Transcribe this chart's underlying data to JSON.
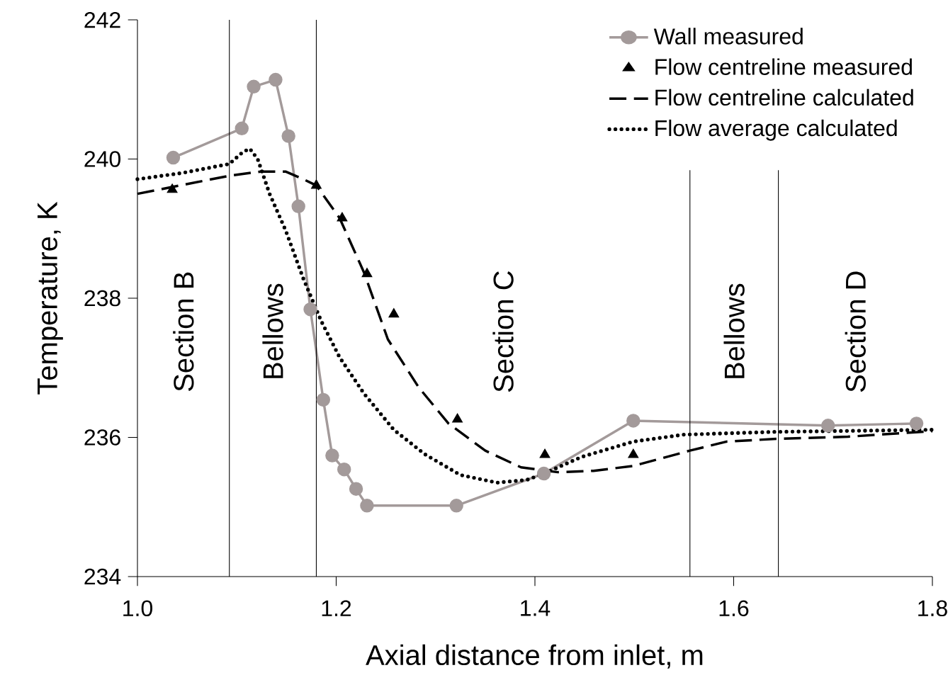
{
  "chart_data": {
    "type": "line",
    "xlabel": "Axial distance from inlet, m",
    "ylabel": "Temperature, K",
    "xlim": [
      1.0,
      1.8
    ],
    "ylim": [
      234,
      242
    ],
    "xticks": [
      {
        "value": 1.0,
        "label": "1.0"
      },
      {
        "value": 1.2,
        "label": "1.2"
      },
      {
        "value": 1.4,
        "label": "1.4"
      },
      {
        "value": 1.6,
        "label": "1.6"
      },
      {
        "value": 1.8,
        "label": "1.8"
      }
    ],
    "yticks": [
      234,
      236,
      238,
      240,
      242
    ],
    "grid": false,
    "legend": "top right",
    "series": [
      {
        "name": "Wall measured",
        "color": "#a39a9a",
        "marker": "circle",
        "line_style": "solid",
        "x": [
          1.036,
          1.105,
          1.117,
          1.139,
          1.152,
          1.162,
          1.174,
          1.187,
          1.196,
          1.208,
          1.22,
          1.231,
          1.321,
          1.409,
          1.499,
          1.695,
          1.784
        ],
        "values": [
          240.02,
          240.44,
          241.04,
          241.14,
          240.33,
          239.32,
          237.84,
          236.54,
          235.74,
          235.54,
          235.26,
          235.02,
          235.02,
          235.48,
          236.24,
          236.17,
          236.2
        ]
      },
      {
        "name": "Flow centreline measured",
        "type": "scatter",
        "color": "#000000",
        "marker": "triangle",
        "x": [
          1.035,
          1.18,
          1.206,
          1.231,
          1.258,
          1.322,
          1.41,
          1.499
        ],
        "values": [
          239.56,
          239.62,
          239.15,
          238.35,
          237.77,
          236.26,
          235.75,
          235.75
        ]
      },
      {
        "name": "Flow centreline calculated",
        "color": "#000000",
        "marker": "none",
        "line_style": "dashed",
        "x": [
          1.0,
          1.0925,
          1.124,
          1.149,
          1.167,
          1.18,
          1.2035,
          1.228,
          1.252,
          1.283,
          1.313,
          1.35,
          1.386,
          1.423,
          1.459,
          1.499,
          1.556,
          1.593,
          1.644,
          1.715,
          1.8
        ],
        "values": [
          239.5,
          239.76,
          239.82,
          239.82,
          239.71,
          239.62,
          239.15,
          238.37,
          237.41,
          236.72,
          236.2,
          235.81,
          235.57,
          235.5,
          235.52,
          235.59,
          235.81,
          235.94,
          235.98,
          236.01,
          236.09
        ]
      },
      {
        "name": "Flow average calculated",
        "color": "#000000",
        "marker": "none",
        "line_style": "dotted",
        "x": [
          1.0,
          1.045,
          1.0925,
          1.106,
          1.113,
          1.121,
          1.133,
          1.149,
          1.167,
          1.185,
          1.2035,
          1.228,
          1.258,
          1.289,
          1.325,
          1.362,
          1.392,
          1.409,
          1.447,
          1.499,
          1.55,
          1.642,
          1.8
        ],
        "values": [
          239.71,
          239.8,
          239.93,
          240.1,
          240.15,
          240.0,
          239.5,
          238.98,
          238.28,
          237.67,
          237.15,
          236.63,
          236.11,
          235.76,
          235.46,
          235.35,
          235.39,
          235.48,
          235.72,
          235.94,
          236.04,
          236.08,
          236.11
        ]
      }
    ],
    "ref_lines": [
      {
        "axis": "x",
        "value": 1.0925,
        "color": "#000000",
        "line_style": "solid"
      },
      {
        "axis": "x",
        "value": 1.18,
        "color": "#000000",
        "line_style": "solid"
      },
      {
        "axis": "x",
        "value": 1.556,
        "color": "#000000",
        "line_style": "solid"
      },
      {
        "axis": "x",
        "value": 1.645,
        "color": "#000000",
        "line_style": "solid"
      }
    ],
    "annotations": [
      "Section B",
      "Bellows",
      "Section C",
      "Bellows",
      "Section D"
    ]
  }
}
